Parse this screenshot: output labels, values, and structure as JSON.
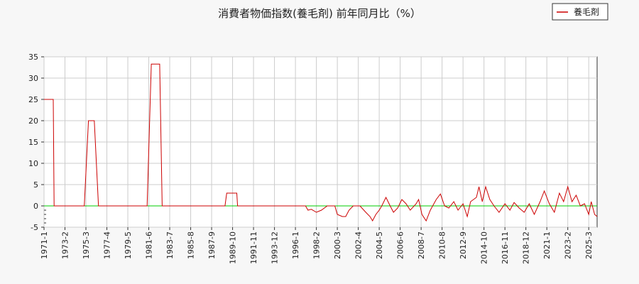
{
  "chart_data": {
    "type": "line",
    "title": "消費者物価指数(養毛剤) 前年同月比（%）",
    "xlabel": "",
    "ylabel": "",
    "ylim": [
      -5,
      35
    ],
    "y_ticks": [
      -5,
      0,
      5,
      10,
      15,
      20,
      25,
      30,
      35
    ],
    "x_tick_labels": [
      "1971-1",
      "1973-2",
      "1975-3",
      "1977-4",
      "1979-5",
      "1981-6",
      "1983-7",
      "1985-8",
      "1987-9",
      "1989-10",
      "1991-11",
      "1993-12",
      "1996-1",
      "1998-2",
      "2000-3",
      "2002-4",
      "2004-5",
      "2006-6",
      "2008-7",
      "2010-8",
      "2012-9",
      "2014-10",
      "2016-11",
      "2018-12",
      "2021-1",
      "2023-2",
      "2025-3"
    ],
    "grid": true,
    "legend_position": "top-right",
    "zero_line_color": "#00cc00",
    "series": [
      {
        "name": "養毛剤",
        "color": "#cc0000",
        "points": [
          [
            "1971-01",
            25
          ],
          [
            "1971-12",
            25
          ],
          [
            "1972-01",
            0
          ],
          [
            "1975-01",
            0
          ],
          [
            "1975-06",
            20
          ],
          [
            "1976-01",
            20
          ],
          [
            "1976-06",
            0
          ],
          [
            "1981-04",
            0
          ],
          [
            "1981-09",
            33.3
          ],
          [
            "1982-07",
            33.3
          ],
          [
            "1982-10",
            0
          ],
          [
            "1989-01",
            0
          ],
          [
            "1989-03",
            3
          ],
          [
            "1990-03",
            3
          ],
          [
            "1990-04",
            0
          ],
          [
            "1997-01",
            0
          ],
          [
            "1997-04",
            -1
          ],
          [
            "1997-08",
            -0.8
          ],
          [
            "1998-02",
            -1.5
          ],
          [
            "1998-08",
            -1
          ],
          [
            "1999-03",
            0
          ],
          [
            "1999-12",
            0
          ],
          [
            "2000-03",
            -2
          ],
          [
            "2000-09",
            -2.5
          ],
          [
            "2001-01",
            -2.5
          ],
          [
            "2001-05",
            -1
          ],
          [
            "2001-10",
            0
          ],
          [
            "2002-06",
            0
          ],
          [
            "2003-01",
            -1.5
          ],
          [
            "2003-06",
            -2.5
          ],
          [
            "2003-09",
            -3.5
          ],
          [
            "2004-01",
            -2
          ],
          [
            "2004-05",
            -1
          ],
          [
            "2004-08",
            0
          ],
          [
            "2005-01",
            2
          ],
          [
            "2005-06",
            0
          ],
          [
            "2005-10",
            -1.5
          ],
          [
            "2006-03",
            -0.5
          ],
          [
            "2006-08",
            1.5
          ],
          [
            "2007-01",
            0.5
          ],
          [
            "2007-06",
            -1
          ],
          [
            "2008-01",
            0.5
          ],
          [
            "2008-04",
            1.5
          ],
          [
            "2008-08",
            -2
          ],
          [
            "2009-01",
            -3.5
          ],
          [
            "2009-06",
            -1
          ],
          [
            "2010-01",
            1.5
          ],
          [
            "2010-06",
            2.8
          ],
          [
            "2010-11",
            0
          ],
          [
            "2011-04",
            -0.5
          ],
          [
            "2011-10",
            1
          ],
          [
            "2012-03",
            -1
          ],
          [
            "2012-09",
            0.5
          ],
          [
            "2013-02",
            -2.5
          ],
          [
            "2013-06",
            1
          ],
          [
            "2014-01",
            2
          ],
          [
            "2014-04",
            4.5
          ],
          [
            "2014-08",
            1
          ],
          [
            "2014-12",
            4.5
          ],
          [
            "2015-05",
            1.5
          ],
          [
            "2015-10",
            0
          ],
          [
            "2016-04",
            -1.5
          ],
          [
            "2016-11",
            0.5
          ],
          [
            "2017-05",
            -1
          ],
          [
            "2017-10",
            0.8
          ],
          [
            "2018-04",
            -0.5
          ],
          [
            "2018-10",
            -1.5
          ],
          [
            "2019-04",
            0.5
          ],
          [
            "2019-10",
            -2
          ],
          [
            "2020-05",
            1
          ],
          [
            "2020-10",
            3.5
          ],
          [
            "2021-04",
            0.5
          ],
          [
            "2021-10",
            -1.5
          ],
          [
            "2022-04",
            3
          ],
          [
            "2022-09",
            1
          ],
          [
            "2023-02",
            4.5
          ],
          [
            "2023-07",
            1
          ],
          [
            "2023-12",
            2.5
          ],
          [
            "2024-05",
            0
          ],
          [
            "2024-10",
            0.5
          ],
          [
            "2025-03",
            -2
          ],
          [
            "2025-06",
            1
          ],
          [
            "2025-10",
            -2
          ],
          [
            "2026-01",
            -2.5
          ]
        ]
      }
    ]
  }
}
